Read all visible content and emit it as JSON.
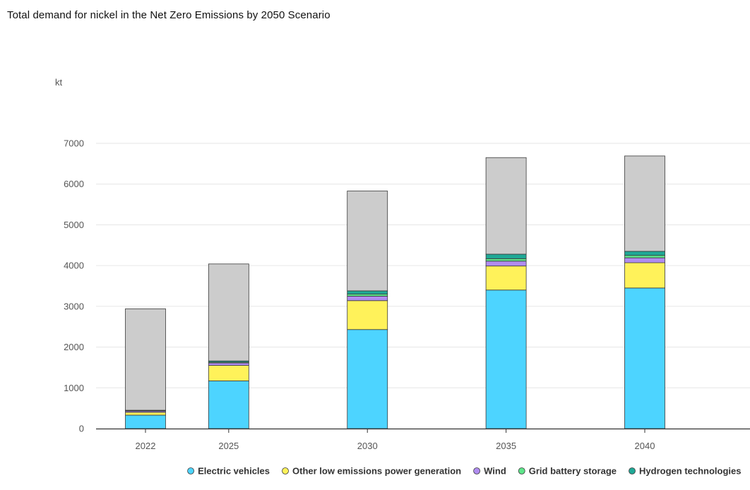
{
  "page": {
    "title": "Total demand for nickel in the Net Zero Emissions by 2050 Scenario"
  },
  "chart_data": {
    "type": "bar",
    "stacked": true,
    "title": "Total demand for nickel in the Net Zero Emissions by 2050 Scenario",
    "ylabel": "kt",
    "xlabel": "",
    "x": [
      2022,
      2025,
      2030,
      2035,
      2040
    ],
    "categories": [
      "2022",
      "2025",
      "2030",
      "2035",
      "2040"
    ],
    "ylim": [
      0,
      7000
    ],
    "yticks": [
      0,
      1000,
      2000,
      3000,
      4000,
      5000,
      6000,
      7000
    ],
    "grid": true,
    "legend_position": "bottom",
    "series": [
      {
        "name": "Electric vehicles",
        "color": "#4dd4ff",
        "values": [
          330,
          1170,
          2430,
          3400,
          3450
        ]
      },
      {
        "name": "Other low emissions power generation",
        "color": "#fff25a",
        "values": [
          70,
          380,
          710,
          590,
          620
        ]
      },
      {
        "name": "Wind",
        "color": "#b08cf0",
        "values": [
          30,
          60,
          110,
          120,
          120
        ]
      },
      {
        "name": "Grid battery storage",
        "color": "#5ee58a",
        "values": [
          10,
          20,
          50,
          60,
          60
        ]
      },
      {
        "name": "Hydrogen technologies",
        "color": "#1fa896",
        "values": [
          10,
          30,
          80,
          110,
          100
        ]
      },
      {
        "color": "#cccccc",
        "values": [
          2490,
          2380,
          2450,
          2370,
          2340
        ]
      }
    ]
  }
}
